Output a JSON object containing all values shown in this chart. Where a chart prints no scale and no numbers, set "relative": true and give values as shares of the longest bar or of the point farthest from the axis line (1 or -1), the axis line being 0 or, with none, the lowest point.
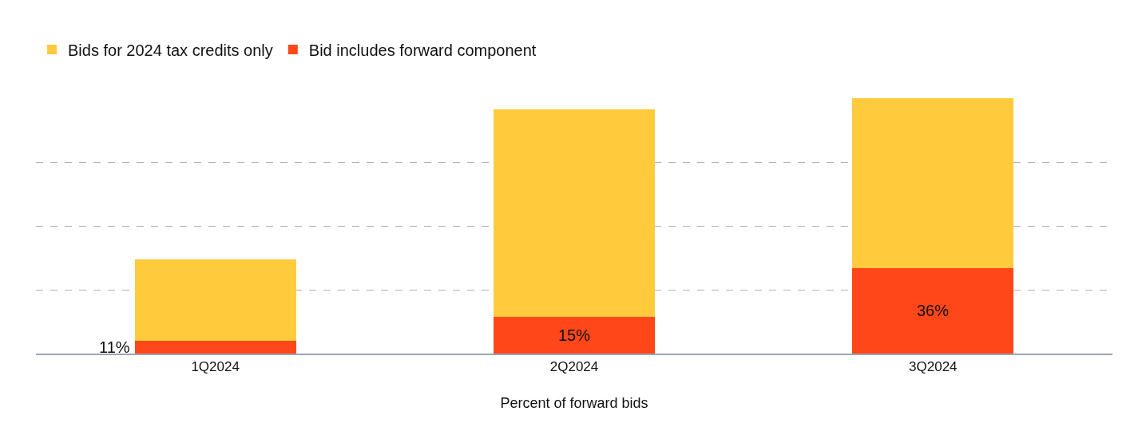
{
  "chart_data": {
    "type": "bar",
    "stacked": true,
    "xlabel": "Percent of forward bids",
    "categories": [
      "1Q2024",
      "2Q2024",
      "3Q2024"
    ],
    "series": [
      {
        "name": "Bid includes forward component",
        "color": "#ff4719",
        "values": [
          0.05,
          0.144,
          0.335
        ]
      },
      {
        "name": "Bids for 2024 tax credits only",
        "color": "#ffcb3d",
        "values": [
          0.32,
          0.812,
          0.665
        ]
      }
    ],
    "relative": true,
    "annotations": [
      "11%",
      "15%",
      "36%"
    ],
    "grid": "y",
    "legend": "top left"
  }
}
